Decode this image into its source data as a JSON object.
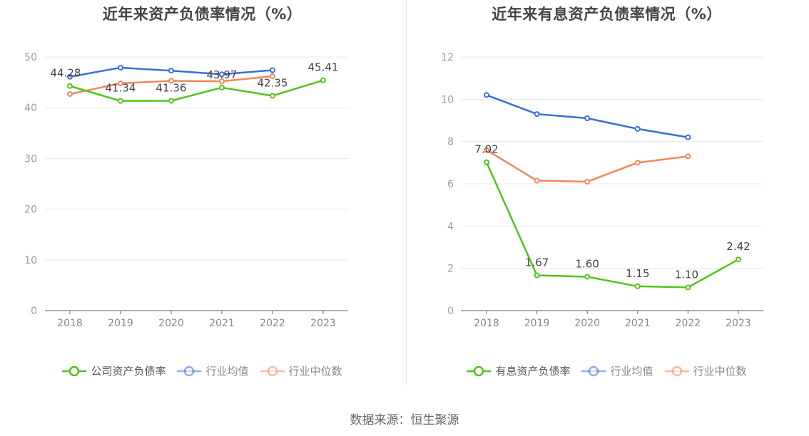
{
  "source": "数据来源：恒生聚源",
  "chart_data": [
    {
      "type": "line",
      "title": "近年来资产负债率情况（%）",
      "x": [
        "2018",
        "2019",
        "2020",
        "2021",
        "2022",
        "2023"
      ],
      "ylim": [
        0,
        50
      ],
      "yticks": [
        0,
        10,
        20,
        30,
        40,
        50
      ],
      "grid": true,
      "legend_position": "bottom",
      "series": [
        {
          "name": "公司资产负债率",
          "color": "#52c41a",
          "values": [
            44.28,
            41.34,
            41.36,
            43.97,
            42.35,
            45.41
          ],
          "labels": [
            "44.28",
            "41.34",
            "41.36",
            "43.97",
            "42.35",
            "45.41"
          ]
        },
        {
          "name": "行业均值",
          "color": "#3a6fd8",
          "values": [
            46.1,
            47.9,
            47.3,
            46.6,
            47.4,
            null
          ]
        },
        {
          "name": "行业中位数",
          "color": "#f0875a",
          "values": [
            42.7,
            44.8,
            45.3,
            45.2,
            46.2,
            null
          ]
        }
      ]
    },
    {
      "type": "line",
      "title": "近年来有息资产负债率情况（%）",
      "x": [
        "2018",
        "2019",
        "2020",
        "2021",
        "2022",
        "2023"
      ],
      "ylim": [
        0,
        12
      ],
      "yticks": [
        0,
        2,
        4,
        6,
        8,
        10,
        12
      ],
      "grid": true,
      "legend_position": "bottom",
      "series": [
        {
          "name": "有息资产负债率",
          "color": "#52c41a",
          "values": [
            7.02,
            1.67,
            1.6,
            1.15,
            1.1,
            2.42
          ],
          "labels": [
            "7.02",
            "1.67",
            "1.60",
            "1.15",
            "1.10",
            "2.42"
          ]
        },
        {
          "name": "行业均值",
          "color": "#3a6fd8",
          "values": [
            10.2,
            9.3,
            9.1,
            8.6,
            8.2,
            null
          ]
        },
        {
          "name": "行业中位数",
          "color": "#f0875a",
          "values": [
            7.6,
            6.15,
            6.1,
            7.0,
            7.3,
            null
          ]
        }
      ]
    }
  ]
}
